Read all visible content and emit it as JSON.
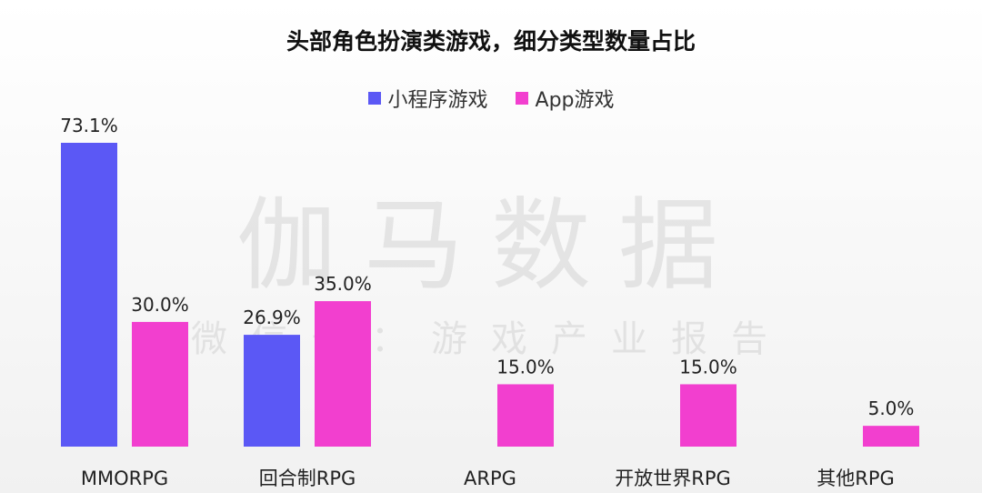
{
  "chart_data": {
    "type": "bar",
    "title": "头部角色扮演类游戏，细分类型数量占比",
    "categories": [
      "MMORPG",
      "回合制RPG",
      "ARPG",
      "开放世界RPG",
      "其他RPG"
    ],
    "series": [
      {
        "name": "小程序游戏",
        "color": "#5b58f5",
        "values": [
          73.1,
          26.9,
          null,
          null,
          null
        ],
        "labels": [
          "73.1%",
          "26.9%",
          "",
          "",
          ""
        ]
      },
      {
        "name": "App游戏",
        "color": "#f23fcf",
        "values": [
          30.0,
          35.0,
          15.0,
          15.0,
          5.0
        ],
        "labels": [
          "30.0%",
          "35.0%",
          "15.0%",
          "15.0%",
          "5.0%"
        ]
      }
    ],
    "ylim": [
      0,
      73.1
    ],
    "grid": false,
    "legend_position": "top-center"
  },
  "watermark": {
    "line1": "伽马数据",
    "line2": "微信号：游戏产业报告"
  }
}
